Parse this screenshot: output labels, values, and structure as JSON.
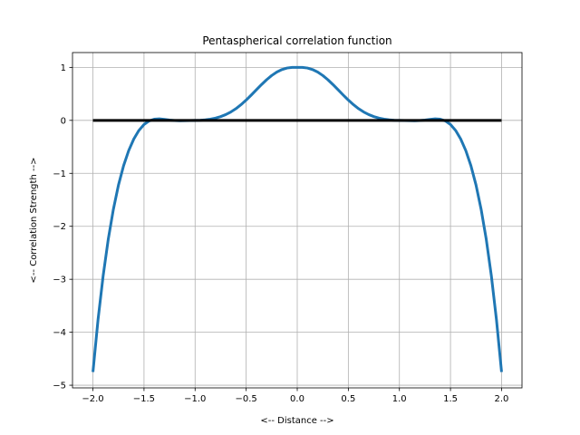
{
  "chart_data": {
    "type": "line",
    "title": "Pentaspherical correlation function",
    "xlabel": "<-- Distance -->",
    "ylabel": "<-- Correlation Strength -->",
    "xlim": [
      -2.2,
      2.2
    ],
    "ylim": [
      -5.05,
      1.28
    ],
    "xticks": [
      -2.0,
      -1.5,
      -1.0,
      -0.5,
      0.0,
      0.5,
      1.0,
      1.5,
      2.0
    ],
    "xtick_labels": [
      "−2.0",
      "−1.5",
      "−1.0",
      "−0.5",
      "0.0",
      "0.5",
      "1.0",
      "1.5",
      "2.0"
    ],
    "yticks": [
      1,
      0,
      -1,
      -2,
      -3,
      -4,
      -5
    ],
    "ytick_labels": [
      "1",
      "0",
      "−1",
      "−2",
      "−3",
      "−4",
      "−5"
    ],
    "grid": true,
    "series": [
      {
        "color": "#1f77b4",
        "x": [
          -2.0,
          -1.95,
          -1.9,
          -1.85,
          -1.8,
          -1.75,
          -1.7,
          -1.65,
          -1.6,
          -1.55,
          -1.5,
          -1.45,
          -1.4,
          -1.35,
          -1.3,
          -1.25,
          -1.2,
          -1.15,
          -1.1,
          -1.05,
          -1.0,
          -0.95,
          -0.9,
          -0.85,
          -0.8,
          -0.75,
          -0.7,
          -0.65,
          -0.6,
          -0.55,
          -0.5,
          -0.45,
          -0.4,
          -0.35,
          -0.3,
          -0.25,
          -0.2,
          -0.15,
          -0.1,
          -0.05,
          0.0,
          0.05,
          0.1,
          0.15,
          0.2,
          0.25,
          0.3,
          0.35,
          0.4,
          0.45,
          0.5,
          0.55,
          0.6,
          0.65,
          0.7,
          0.75,
          0.8,
          0.85,
          0.9,
          0.95,
          1.0,
          1.05,
          1.1,
          1.15,
          1.2,
          1.25,
          1.3,
          1.35,
          1.4,
          1.45,
          1.5,
          1.55,
          1.6,
          1.65,
          1.7,
          1.75,
          1.8,
          1.85,
          1.9,
          1.95,
          2.0
        ],
        "y": [
          -4.75,
          -3.763,
          -2.934,
          -2.245,
          -1.68,
          -1.221,
          -0.856,
          -0.571,
          -0.352,
          -0.19,
          -0.078,
          -0.01,
          0.022,
          0.028,
          0.019,
          0.006,
          -0.004,
          -0.008,
          -0.006,
          -0.002,
          0.0,
          0.002,
          0.009,
          0.022,
          0.042,
          0.071,
          0.109,
          0.159,
          0.221,
          0.297,
          0.383,
          0.478,
          0.577,
          0.675,
          0.767,
          0.847,
          0.912,
          0.959,
          0.988,
          0.999,
          1.0,
          0.999,
          0.988,
          0.959,
          0.912,
          0.847,
          0.767,
          0.675,
          0.577,
          0.478,
          0.383,
          0.297,
          0.221,
          0.159,
          0.109,
          0.071,
          0.042,
          0.022,
          0.009,
          0.002,
          0.0,
          -0.002,
          -0.006,
          -0.008,
          -0.004,
          0.006,
          0.019,
          0.028,
          0.022,
          -0.01,
          -0.078,
          -0.19,
          -0.352,
          -0.571,
          -0.856,
          -1.221,
          -1.68,
          -2.245,
          -2.934,
          -3.763,
          -4.75
        ]
      },
      {
        "color": "#000000",
        "x": [
          -2.0,
          2.0
        ],
        "y": [
          0,
          0
        ]
      }
    ]
  }
}
